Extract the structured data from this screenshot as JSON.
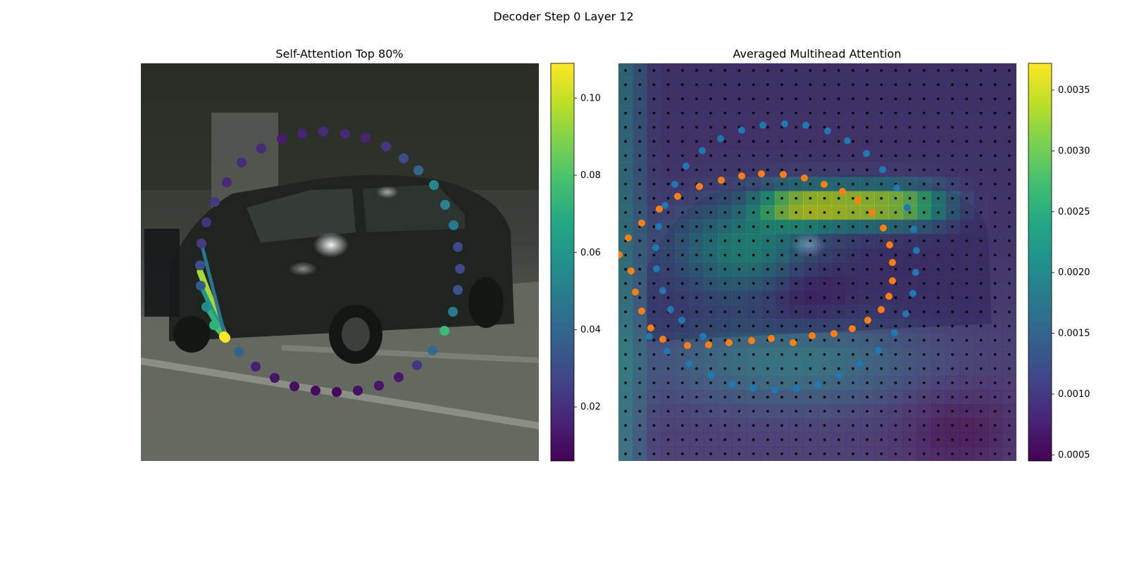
{
  "figure": {
    "suptitle": "Decoder Step 0 Layer 12"
  },
  "chart_data": [
    {
      "type": "scatter",
      "title": "Self-Attention Top 80%",
      "colormap": "viridis",
      "colorbar": {
        "min": 0.006,
        "max": 0.109,
        "ticks": [
          "0.02",
          "0.04",
          "0.06",
          "0.08",
          "0.10"
        ]
      },
      "query_point": {
        "x": 120,
        "y": 390,
        "value": 0.109
      },
      "points": [
        {
          "x": 118,
          "y": 388,
          "v": 0.109
        },
        {
          "x": 139,
          "y": 410,
          "v": 0.039
        },
        {
          "x": 163,
          "y": 431,
          "v": 0.015
        },
        {
          "x": 190,
          "y": 447,
          "v": 0.012
        },
        {
          "x": 218,
          "y": 459,
          "v": 0.01
        },
        {
          "x": 248,
          "y": 465,
          "v": 0.009
        },
        {
          "x": 278,
          "y": 467,
          "v": 0.008
        },
        {
          "x": 308,
          "y": 465,
          "v": 0.01
        },
        {
          "x": 338,
          "y": 458,
          "v": 0.012
        },
        {
          "x": 366,
          "y": 446,
          "v": 0.013
        },
        {
          "x": 392,
          "y": 429,
          "v": 0.022
        },
        {
          "x": 414,
          "y": 408,
          "v": 0.042
        },
        {
          "x": 431,
          "y": 380,
          "v": 0.076
        },
        {
          "x": 443,
          "y": 353,
          "v": 0.048
        },
        {
          "x": 450,
          "y": 322,
          "v": 0.032
        },
        {
          "x": 453,
          "y": 292,
          "v": 0.028
        },
        {
          "x": 450,
          "y": 261,
          "v": 0.029
        },
        {
          "x": 444,
          "y": 230,
          "v": 0.047
        },
        {
          "x": 432,
          "y": 201,
          "v": 0.052
        },
        {
          "x": 416,
          "y": 173,
          "v": 0.053
        },
        {
          "x": 394,
          "y": 152,
          "v": 0.04
        },
        {
          "x": 373,
          "y": 135,
          "v": 0.03
        },
        {
          "x": 348,
          "y": 118,
          "v": 0.022
        },
        {
          "x": 319,
          "y": 106,
          "v": 0.016
        },
        {
          "x": 290,
          "y": 100,
          "v": 0.018
        },
        {
          "x": 259,
          "y": 97,
          "v": 0.019
        },
        {
          "x": 229,
          "y": 100,
          "v": 0.016
        },
        {
          "x": 200,
          "y": 107,
          "v": 0.014
        },
        {
          "x": 171,
          "y": 121,
          "v": 0.018
        },
        {
          "x": 143,
          "y": 141,
          "v": 0.02
        },
        {
          "x": 122,
          "y": 169,
          "v": 0.018
        },
        {
          "x": 105,
          "y": 197,
          "v": 0.022
        },
        {
          "x": 93,
          "y": 226,
          "v": 0.021
        },
        {
          "x": 86,
          "y": 256,
          "v": 0.024
        },
        {
          "x": 84,
          "y": 287,
          "v": 0.03
        },
        {
          "x": 85,
          "y": 316,
          "v": 0.035
        },
        {
          "x": 93,
          "y": 346,
          "v": 0.055
        },
        {
          "x": 104,
          "y": 372,
          "v": 0.072
        }
      ],
      "attention_lines": [
        {
          "to_x": 84,
          "to_y": 296,
          "v": 0.095
        },
        {
          "to_x": 85,
          "to_y": 316,
          "v": 0.06
        },
        {
          "to_x": 93,
          "to_y": 346,
          "v": 0.072
        },
        {
          "to_x": 104,
          "to_y": 372,
          "v": 0.08
        },
        {
          "to_x": 86,
          "to_y": 256,
          "v": 0.045
        }
      ]
    },
    {
      "type": "heatmap",
      "title": "Averaged Multihead Attention",
      "colormap": "viridis",
      "colorbar": {
        "min": 0.00045,
        "max": 0.00372,
        "ticks": [
          "0.0005",
          "0.0010",
          "0.0015",
          "0.0020",
          "0.0025",
          "0.0030",
          "0.0035"
        ]
      },
      "grid_size": 28,
      "hotspot": {
        "peak": 0.0036,
        "row_range": [
          9,
          10
        ],
        "col_range": [
          11,
          22
        ]
      },
      "series": [
        {
          "color": "#1f77b4",
          "points": [
            {
              "x": 44,
              "y": 388
            },
            {
              "x": 69,
              "y": 409
            },
            {
              "x": 100,
              "y": 427
            },
            {
              "x": 131,
              "y": 443
            },
            {
              "x": 161,
              "y": 456
            },
            {
              "x": 191,
              "y": 462
            },
            {
              "x": 222,
              "y": 464
            },
            {
              "x": 253,
              "y": 462
            },
            {
              "x": 283,
              "y": 456
            },
            {
              "x": 313,
              "y": 443
            },
            {
              "x": 342,
              "y": 427
            },
            {
              "x": 369,
              "y": 408
            },
            {
              "x": 392,
              "y": 383
            },
            {
              "x": 408,
              "y": 356
            },
            {
              "x": 418,
              "y": 327
            },
            {
              "x": 422,
              "y": 297
            },
            {
              "x": 423,
              "y": 266
            },
            {
              "x": 419,
              "y": 236
            },
            {
              "x": 410,
              "y": 205
            },
            {
              "x": 395,
              "y": 177
            },
            {
              "x": 375,
              "y": 151
            },
            {
              "x": 352,
              "y": 128
            },
            {
              "x": 325,
              "y": 110
            },
            {
              "x": 297,
              "y": 96
            },
            {
              "x": 266,
              "y": 88
            },
            {
              "x": 236,
              "y": 86
            },
            {
              "x": 205,
              "y": 88
            },
            {
              "x": 175,
              "y": 95
            },
            {
              "x": 145,
              "y": 107
            },
            {
              "x": 119,
              "y": 124
            },
            {
              "x": 96,
              "y": 146
            },
            {
              "x": 80,
              "y": 172
            },
            {
              "x": 66,
              "y": 202
            },
            {
              "x": 57,
              "y": 232
            },
            {
              "x": 53,
              "y": 262
            },
            {
              "x": 54,
              "y": 292
            },
            {
              "x": 63,
              "y": 323
            },
            {
              "x": 74,
              "y": 350
            },
            {
              "x": 90,
              "y": 365
            },
            {
              "x": 120,
              "y": 388
            }
          ]
        },
        {
          "color": "#ff7f0e",
          "points": [
            {
              "x": 18,
              "y": 295
            },
            {
              "x": 24,
              "y": 325
            },
            {
              "x": 33,
              "y": 352
            },
            {
              "x": 46,
              "y": 376
            },
            {
              "x": 63,
              "y": 392
            },
            {
              "x": 98,
              "y": 401
            },
            {
              "x": 128,
              "y": 400
            },
            {
              "x": 157,
              "y": 397
            },
            {
              "x": 189,
              "y": 394
            },
            {
              "x": 217,
              "y": 391
            },
            {
              "x": 248,
              "y": 397
            },
            {
              "x": 275,
              "y": 387
            },
            {
              "x": 306,
              "y": 384
            },
            {
              "x": 332,
              "y": 377
            },
            {
              "x": 354,
              "y": 365
            },
            {
              "x": 373,
              "y": 350
            },
            {
              "x": 384,
              "y": 331
            },
            {
              "x": 389,
              "y": 309
            },
            {
              "x": 389,
              "y": 283
            },
            {
              "x": 385,
              "y": 258
            },
            {
              "x": 376,
              "y": 234
            },
            {
              "x": 360,
              "y": 212
            },
            {
              "x": 340,
              "y": 195
            },
            {
              "x": 318,
              "y": 182
            },
            {
              "x": 292,
              "y": 172
            },
            {
              "x": 264,
              "y": 163
            },
            {
              "x": 234,
              "y": 158
            },
            {
              "x": 203,
              "y": 157
            },
            {
              "x": 175,
              "y": 160
            },
            {
              "x": 146,
              "y": 166
            },
            {
              "x": 115,
              "y": 175
            },
            {
              "x": 84,
              "y": 189
            },
            {
              "x": 58,
              "y": 207
            },
            {
              "x": 33,
              "y": 227
            },
            {
              "x": 14,
              "y": 248
            },
            {
              "x": 1,
              "y": 272
            }
          ]
        }
      ]
    }
  ]
}
